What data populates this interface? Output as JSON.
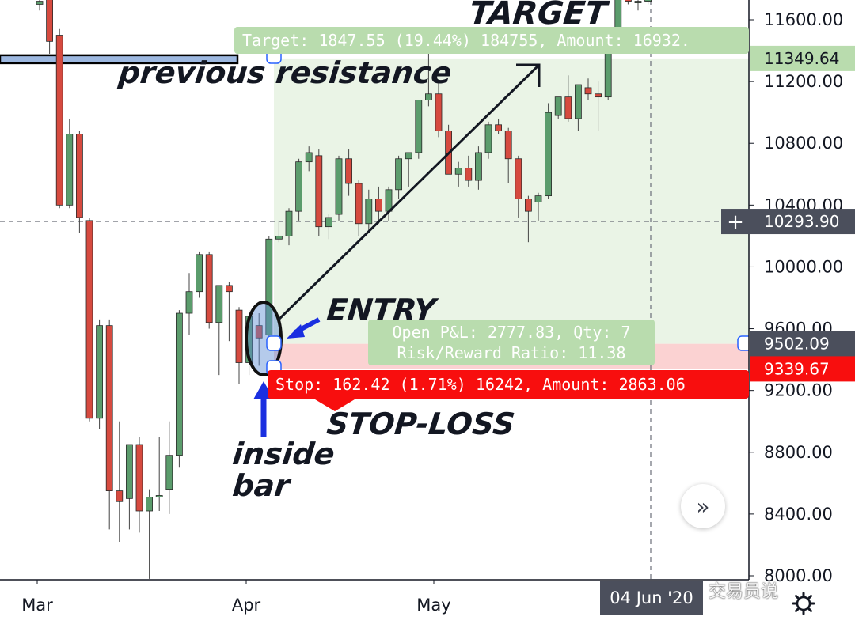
{
  "chart_data": {
    "type": "candlestick",
    "x_ticks": [
      "Mar",
      "Apr",
      "May"
    ],
    "y_ticks": [
      "11600.00",
      "11200.00",
      "10800.00",
      "10400.00",
      "10000.00",
      "9600.00",
      "9200.00",
      "8800.00",
      "8400.00",
      "8000.00"
    ],
    "ylim": [
      7980,
      11700
    ],
    "candles": [
      {
        "o": 11700,
        "h": 11760,
        "l": 11660,
        "c": 11720
      },
      {
        "o": 11760,
        "h": 11820,
        "l": 11380,
        "c": 11460
      },
      {
        "o": 11500,
        "h": 11540,
        "l": 10380,
        "c": 10400
      },
      {
        "o": 10400,
        "h": 10960,
        "l": 10380,
        "c": 10860
      },
      {
        "o": 10860,
        "h": 10880,
        "l": 10220,
        "c": 10320
      },
      {
        "o": 10300,
        "h": 10320,
        "l": 9000,
        "c": 9020
      },
      {
        "o": 9020,
        "h": 9660,
        "l": 8950,
        "c": 9620
      },
      {
        "o": 9620,
        "h": 9660,
        "l": 8300,
        "c": 8550
      },
      {
        "o": 8550,
        "h": 9000,
        "l": 8220,
        "c": 8480
      },
      {
        "o": 8500,
        "h": 8850,
        "l": 8300,
        "c": 8850
      },
      {
        "o": 8850,
        "h": 8900,
        "l": 8280,
        "c": 8420
      },
      {
        "o": 8420,
        "h": 8560,
        "l": 7980,
        "c": 8510
      },
      {
        "o": 8510,
        "h": 8900,
        "l": 8420,
        "c": 8520
      },
      {
        "o": 8560,
        "h": 9000,
        "l": 8400,
        "c": 8780
      },
      {
        "o": 8780,
        "h": 9720,
        "l": 8700,
        "c": 9700
      },
      {
        "o": 9700,
        "h": 9960,
        "l": 9560,
        "c": 9840
      },
      {
        "o": 9840,
        "h": 10100,
        "l": 9800,
        "c": 10080
      },
      {
        "o": 10080,
        "h": 10100,
        "l": 9600,
        "c": 9640
      },
      {
        "o": 9640,
        "h": 9880,
        "l": 9300,
        "c": 9880
      },
      {
        "o": 9880,
        "h": 9900,
        "l": 9520,
        "c": 9840
      },
      {
        "o": 9720,
        "h": 9740,
        "l": 9240,
        "c": 9380
      },
      {
        "o": 9380,
        "h": 9720,
        "l": 9300,
        "c": 9680
      },
      {
        "o": 9620,
        "h": 9700,
        "l": 9360,
        "c": 9540
      },
      {
        "o": 9560,
        "h": 10200,
        "l": 9520,
        "c": 10180
      },
      {
        "o": 10180,
        "h": 10300,
        "l": 10160,
        "c": 10200
      },
      {
        "o": 10200,
        "h": 10380,
        "l": 10140,
        "c": 10360
      },
      {
        "o": 10360,
        "h": 10700,
        "l": 10300,
        "c": 10680
      },
      {
        "o": 10680,
        "h": 10780,
        "l": 10620,
        "c": 10740
      },
      {
        "o": 10720,
        "h": 10760,
        "l": 10200,
        "c": 10260
      },
      {
        "o": 10260,
        "h": 10340,
        "l": 10180,
        "c": 10320
      },
      {
        "o": 10340,
        "h": 10720,
        "l": 10300,
        "c": 10700
      },
      {
        "o": 10700,
        "h": 10760,
        "l": 10460,
        "c": 10540
      },
      {
        "o": 10540,
        "h": 10560,
        "l": 10200,
        "c": 10280
      },
      {
        "o": 10280,
        "h": 10500,
        "l": 10220,
        "c": 10440
      },
      {
        "o": 10440,
        "h": 10520,
        "l": 10280,
        "c": 10360
      },
      {
        "o": 10360,
        "h": 10520,
        "l": 10300,
        "c": 10500
      },
      {
        "o": 10500,
        "h": 10720,
        "l": 10440,
        "c": 10700
      },
      {
        "o": 10700,
        "h": 10740,
        "l": 10520,
        "c": 10740
      },
      {
        "o": 10740,
        "h": 11080,
        "l": 10700,
        "c": 11080
      },
      {
        "o": 11080,
        "h": 11440,
        "l": 11040,
        "c": 11120
      },
      {
        "o": 11120,
        "h": 11200,
        "l": 10840,
        "c": 10880
      },
      {
        "o": 10880,
        "h": 10920,
        "l": 10600,
        "c": 10600
      },
      {
        "o": 10600,
        "h": 10680,
        "l": 10520,
        "c": 10640
      },
      {
        "o": 10640,
        "h": 10720,
        "l": 10520,
        "c": 10560
      },
      {
        "o": 10560,
        "h": 10780,
        "l": 10500,
        "c": 10740
      },
      {
        "o": 10740,
        "h": 10940,
        "l": 10700,
        "c": 10920
      },
      {
        "o": 10920,
        "h": 10960,
        "l": 10860,
        "c": 10880
      },
      {
        "o": 10880,
        "h": 10900,
        "l": 10540,
        "c": 10700
      },
      {
        "o": 10700,
        "h": 10720,
        "l": 10320,
        "c": 10440
      },
      {
        "o": 10440,
        "h": 10460,
        "l": 10160,
        "c": 10360
      },
      {
        "o": 10420,
        "h": 10480,
        "l": 10300,
        "c": 10460
      },
      {
        "o": 10460,
        "h": 11060,
        "l": 10440,
        "c": 11000
      },
      {
        "o": 10980,
        "h": 11100,
        "l": 10960,
        "c": 11100
      },
      {
        "o": 11100,
        "h": 11240,
        "l": 10940,
        "c": 10960
      },
      {
        "o": 10960,
        "h": 11180,
        "l": 10880,
        "c": 11180
      },
      {
        "o": 11160,
        "h": 11220,
        "l": 11080,
        "c": 11120
      },
      {
        "o": 11120,
        "h": 11200,
        "l": 10880,
        "c": 11100
      },
      {
        "o": 11100,
        "h": 11500,
        "l": 11080,
        "c": 11480
      },
      {
        "o": 11480,
        "h": 11800,
        "l": 11460,
        "c": 11780
      },
      {
        "o": 11780,
        "h": 11820,
        "l": 11700,
        "c": 11720
      },
      {
        "o": 11720,
        "h": 11760,
        "l": 11660,
        "c": 11720
      },
      {
        "o": 11720,
        "h": 11800,
        "l": 11700,
        "c": 11760
      }
    ],
    "position": {
      "entry": 9502.09,
      "target_price": 11349.64,
      "stop_price": 9339.67,
      "crosshair_price": 10293.9
    },
    "resistance_level": 11349.64
  },
  "price_scale": {
    "target_badge": "11349.64",
    "crosshair_badge": "10293.90",
    "entry_badge": "9502.09",
    "stop_badge": "9339.67",
    "crosshair_plus": "+"
  },
  "labels": {
    "target": "Target: 1847.55 (19.44%) 184755, Amount: 16932.",
    "stop": "Stop: 162.42 (1.71%) 16242, Amount: 2863.06",
    "pnl_line1": "Open P&L: 2777.83, Qty: 7",
    "pnl_line2": "Risk/Reward Ratio: 11.38"
  },
  "annotations": {
    "target_text": "TARGET",
    "previous_resistance": "previous resistance",
    "entry": "ENTRY",
    "stop_loss": "STOP-LOSS",
    "inside_bar_line1": "inside",
    "inside_bar_line2": "bar"
  },
  "time_badge": "04 Jun '20",
  "watermark": "交易员说",
  "scroll_button_icon": "double-chevron-right-icon",
  "colors": {
    "up": "#5b9c6c",
    "down": "#d64a3f",
    "profit_zone": "#eaf4e6",
    "loss_zone": "#fbd2d2",
    "target_label": "#b9dcae",
    "stop_label": "#f80e0e",
    "badge_dark": "#4b4f5c"
  }
}
